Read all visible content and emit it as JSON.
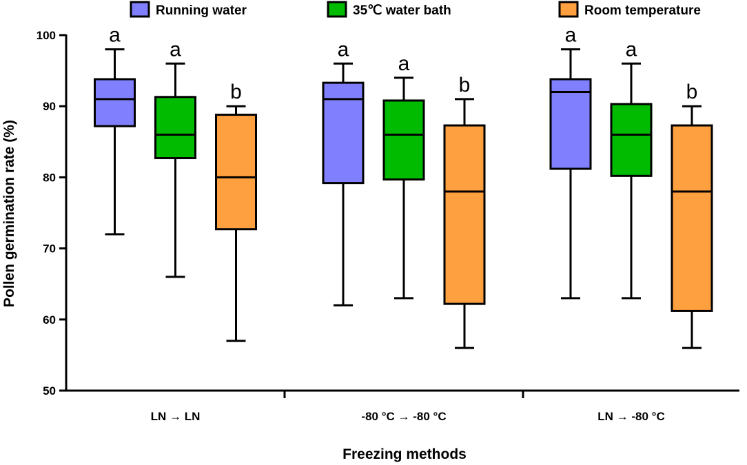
{
  "chart_data": {
    "type": "box",
    "title": "",
    "xlabel": "Freezing methods",
    "ylabel": "Pollen germination rate (%)",
    "ylim": [
      50,
      100
    ],
    "yticks": [
      50,
      60,
      70,
      80,
      90,
      100
    ],
    "grid": false,
    "legend_position": "top",
    "categories": [
      "LN → LN",
      "-80 °C → -80 °C",
      "LN → -80 °C"
    ],
    "series": [
      {
        "name": "Running water",
        "color": "#8080ff",
        "boxes": [
          {
            "min": 72,
            "q1": 87.2,
            "median": 91,
            "q3": 93.8,
            "max": 98,
            "letter": "a"
          },
          {
            "min": 62,
            "q1": 79.2,
            "median": 91,
            "q3": 93.3,
            "max": 96,
            "letter": "a"
          },
          {
            "min": 63,
            "q1": 81.2,
            "median": 92,
            "q3": 93.8,
            "max": 98,
            "letter": "a"
          }
        ]
      },
      {
        "name": "35℃ water bath",
        "color": "#00bb00",
        "boxes": [
          {
            "min": 66,
            "q1": 82.7,
            "median": 86,
            "q3": 91.3,
            "max": 96,
            "letter": "a"
          },
          {
            "min": 63,
            "q1": 79.7,
            "median": 86,
            "q3": 90.8,
            "max": 94,
            "letter": "a"
          },
          {
            "min": 63,
            "q1": 80.2,
            "median": 86,
            "q3": 90.3,
            "max": 96,
            "letter": "a"
          }
        ]
      },
      {
        "name": "Room temperature",
        "color": "#ffa040",
        "boxes": [
          {
            "min": 57,
            "q1": 72.7,
            "median": 80,
            "q3": 88.8,
            "max": 90,
            "letter": "b"
          },
          {
            "min": 56,
            "q1": 62.2,
            "median": 78,
            "q3": 87.3,
            "max": 91,
            "letter": "b"
          },
          {
            "min": 56,
            "q1": 61.2,
            "median": 78,
            "q3": 87.3,
            "max": 90,
            "letter": "b"
          }
        ]
      }
    ]
  }
}
